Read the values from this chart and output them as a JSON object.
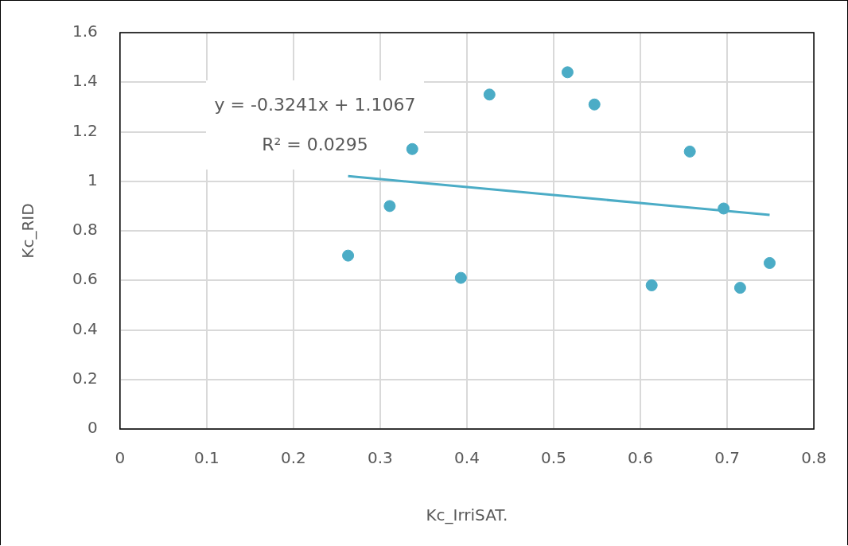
{
  "chart_data": {
    "type": "scatter",
    "xlabel": "Kc_IrriSAT.",
    "ylabel": "Kc_RID",
    "annotations": [
      "y = -0.3241x + 1.1067",
      "R² = 0.0295"
    ],
    "series": [
      {
        "marker": "circle",
        "color": "#4bacc6",
        "x": [
          0.263,
          0.311,
          0.337,
          0.393,
          0.426,
          0.516,
          0.547,
          0.613,
          0.657,
          0.696,
          0.715,
          0.749
        ],
        "values": [
          0.7,
          0.9,
          1.13,
          0.61,
          1.35,
          1.44,
          1.31,
          0.58,
          1.12,
          0.89,
          0.57,
          0.67
        ]
      },
      {
        "type": "line",
        "marker": "none",
        "color": "#4bacc6",
        "x": [
          0.263,
          0.749
        ],
        "values": [
          1.021,
          0.864
        ]
      }
    ],
    "xlim": [
      0,
      0.8
    ],
    "xticks": [
      0,
      0.1,
      0.2,
      0.3,
      0.4,
      0.5,
      0.6,
      0.7,
      0.8
    ],
    "ylim": [
      0,
      1.6
    ],
    "yticks": [
      0,
      0.2,
      0.4,
      0.6,
      0.8,
      1,
      1.2,
      1.4,
      1.6
    ],
    "grid": true,
    "line_style": "solid"
  }
}
